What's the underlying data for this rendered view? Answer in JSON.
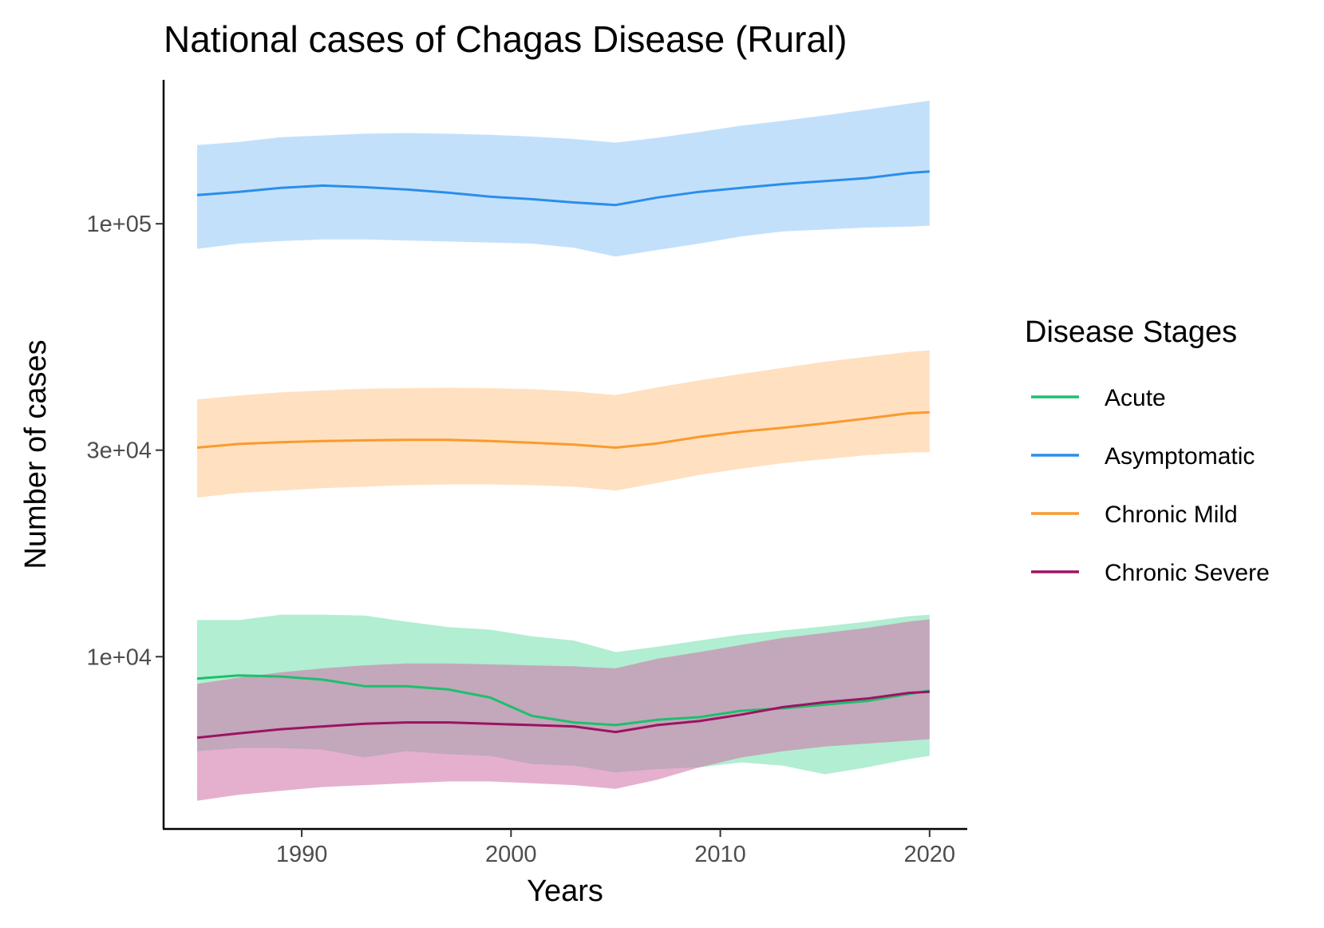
{
  "chart_data": {
    "type": "line",
    "title": "National cases of Chagas Disease (Rural)",
    "xlabel": "Years",
    "ylabel": "Number of cases",
    "y_scale": "log",
    "xlim": [
      1983.4,
      2021.8
    ],
    "ylim": [
      4000,
      215000
    ],
    "x_ticks": [
      1990,
      2000,
      2010,
      2020
    ],
    "x_tick_labels": [
      "1990",
      "2000",
      "2010",
      "2020"
    ],
    "y_ticks": [
      10000,
      30000,
      100000
    ],
    "y_tick_labels": [
      "1e+04",
      "3e+04",
      "1e+05"
    ],
    "grid": false,
    "legend": {
      "title": "Disease Stages",
      "position": "right",
      "order": [
        "Acute",
        "Asymptomatic",
        "Chronic Mild",
        "Chronic Severe"
      ]
    },
    "band_draw_order": [
      "Asymptomatic",
      "Chronic Mild",
      "Acute",
      "Chronic Severe"
    ],
    "x": [
      1985,
      1987,
      1989,
      1991,
      1993,
      1995,
      1997,
      1999,
      2001,
      2003,
      2005,
      2007,
      2009,
      2011,
      2013,
      2015,
      2017,
      2019,
      2020
    ],
    "series": [
      {
        "name": "Acute",
        "color": "#1fbe6e",
        "band_color": "#b2eed2",
        "values": [
          8900,
          9050,
          9000,
          8850,
          8550,
          8550,
          8400,
          8050,
          7300,
          7050,
          6950,
          7150,
          7250,
          7500,
          7600,
          7750,
          7900,
          8200,
          8350
        ],
        "lower": [
          6050,
          6150,
          6150,
          6100,
          5850,
          6050,
          5950,
          5900,
          5650,
          5600,
          5400,
          5500,
          5550,
          5700,
          5600,
          5350,
          5550,
          5800,
          5900
        ],
        "upper": [
          12150,
          12150,
          12500,
          12500,
          12450,
          12050,
          11700,
          11550,
          11150,
          10900,
          10250,
          10550,
          10900,
          11250,
          11500,
          11750,
          12050,
          12400,
          12500
        ]
      },
      {
        "name": "Asymptomatic",
        "color": "#2b8eea",
        "band_color": "#c3e0fb",
        "values": [
          116500,
          118500,
          121000,
          122500,
          121500,
          120000,
          118000,
          115500,
          114000,
          112000,
          110500,
          115000,
          118500,
          121000,
          123500,
          125500,
          127500,
          131000,
          132000
        ],
        "lower": [
          87500,
          90000,
          91200,
          92000,
          92000,
          91500,
          91000,
          90500,
          90000,
          88000,
          84000,
          87000,
          90000,
          93500,
          96000,
          97000,
          98000,
          98500,
          99000
        ],
        "upper": [
          152000,
          154500,
          158500,
          160000,
          161500,
          162000,
          161500,
          160500,
          159000,
          157000,
          154000,
          158000,
          163000,
          168500,
          173000,
          178000,
          183500,
          189500,
          192500
        ]
      },
      {
        "name": "Chronic Mild",
        "color": "#f99a2e",
        "band_color": "#ffe0c0",
        "values": [
          30400,
          31000,
          31300,
          31500,
          31600,
          31700,
          31700,
          31500,
          31200,
          30900,
          30400,
          31100,
          32200,
          33100,
          33800,
          34600,
          35500,
          36500,
          36700
        ],
        "lower": [
          23300,
          23900,
          24200,
          24500,
          24700,
          24900,
          25000,
          25000,
          24900,
          24700,
          24200,
          25200,
          26300,
          27200,
          28000,
          28600,
          29200,
          29600,
          29700
        ],
        "upper": [
          39300,
          40100,
          40800,
          41200,
          41600,
          41700,
          41800,
          41700,
          41500,
          41000,
          40200,
          41900,
          43500,
          45000,
          46500,
          48000,
          49300,
          50600,
          51000
        ]
      },
      {
        "name": "Chronic Severe",
        "color": "#9c1363",
        "band_color": "#d070a6",
        "values": [
          6500,
          6650,
          6800,
          6900,
          7000,
          7050,
          7050,
          7000,
          6950,
          6900,
          6700,
          6950,
          7100,
          7350,
          7650,
          7850,
          8000,
          8250,
          8300
        ],
        "lower": [
          4650,
          4800,
          4900,
          5000,
          5050,
          5100,
          5150,
          5150,
          5100,
          5050,
          4950,
          5200,
          5550,
          5850,
          6050,
          6200,
          6300,
          6400,
          6450
        ],
        "upper": [
          8650,
          8950,
          9200,
          9400,
          9550,
          9650,
          9650,
          9600,
          9550,
          9500,
          9400,
          9900,
          10250,
          10650,
          11050,
          11350,
          11650,
          12050,
          12200
        ]
      }
    ]
  }
}
